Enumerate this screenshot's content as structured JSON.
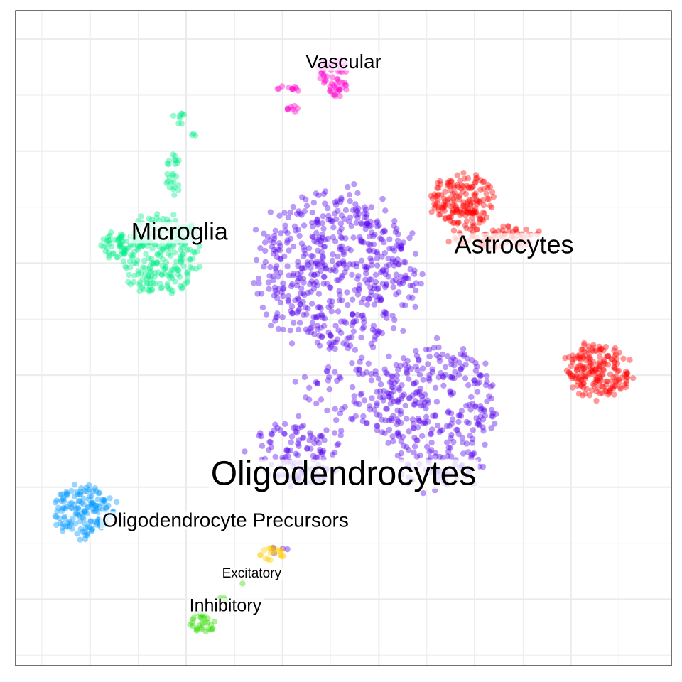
{
  "chart_data": {
    "type": "scatter",
    "title": "",
    "xlabel": "",
    "ylabel": "",
    "grid": true,
    "legend": "none",
    "xlim": [
      0,
      100
    ],
    "ylim": [
      0,
      100
    ],
    "clusters": [
      {
        "name": "Oligodendrocytes",
        "color": "#5500ee",
        "label_at": [
          50,
          29
        ],
        "blobs": [
          {
            "cx": 49,
            "cy": 60,
            "rx": 12,
            "ry": 12,
            "n": 560
          },
          {
            "cx": 64,
            "cy": 38,
            "rx": 9,
            "ry": 11,
            "n": 320
          },
          {
            "cx": 43,
            "cy": 33,
            "rx": 7,
            "ry": 5,
            "n": 120
          },
          {
            "cx": 53,
            "cy": 42,
            "rx": 9,
            "ry": 5,
            "n": 90
          },
          {
            "cx": 40,
            "cy": 18,
            "rx": 1.5,
            "ry": 1,
            "n": 5
          }
        ]
      },
      {
        "name": "Astrocytes",
        "color": "#ff0000",
        "label_at": [
          76,
          64
        ],
        "blobs": [
          {
            "cx": 68,
            "cy": 71,
            "rx": 5,
            "ry": 4,
            "n": 170
          },
          {
            "cx": 73,
            "cy": 65.5,
            "rx": 7,
            "ry": 1.8,
            "n": 80
          },
          {
            "cx": 89,
            "cy": 45,
            "rx": 5,
            "ry": 4,
            "n": 190
          }
        ]
      },
      {
        "name": "Microglia",
        "color": "#00ee88",
        "label_at": [
          25,
          66
        ],
        "blobs": [
          {
            "cx": 22,
            "cy": 63,
            "rx": 6,
            "ry": 6,
            "n": 260
          },
          {
            "cx": 15,
            "cy": 64,
            "rx": 2.2,
            "ry": 2.2,
            "n": 40
          },
          {
            "cx": 24,
            "cy": 75,
            "rx": 1.1,
            "ry": 3.5,
            "n": 25
          },
          {
            "cx": 25,
            "cy": 83.5,
            "rx": 0.9,
            "ry": 1.5,
            "n": 8
          },
          {
            "cx": 27,
            "cy": 81,
            "rx": 0.5,
            "ry": 0.3,
            "n": 3
          }
        ]
      },
      {
        "name": "Vascular",
        "color": "#ff00cc",
        "label_at": [
          50,
          92
        ],
        "blobs": [
          {
            "cx": 48.5,
            "cy": 90,
            "rx": 2.2,
            "ry": 3.2,
            "n": 60
          },
          {
            "cx": 41.5,
            "cy": 88,
            "rx": 1.8,
            "ry": 0.5,
            "n": 10
          },
          {
            "cx": 42.5,
            "cy": 85,
            "rx": 1.4,
            "ry": 0.5,
            "n": 8
          }
        ]
      },
      {
        "name": "Oligodendrocyte Precursors",
        "color": "#0099ff",
        "label_at": [
          32,
          22
        ],
        "blobs": [
          {
            "cx": 10.5,
            "cy": 23.5,
            "rx": 4.5,
            "ry": 4,
            "n": 150
          }
        ]
      },
      {
        "name": "Excitatory",
        "color": "#ffcc00",
        "label_at": [
          36,
          14
        ],
        "blobs": [
          {
            "cx": 39,
            "cy": 17,
            "rx": 2,
            "ry": 1,
            "n": 20
          }
        ]
      },
      {
        "name": "Inhibitory",
        "color": "#33dd00",
        "label_at": [
          32,
          9
        ],
        "blobs": [
          {
            "cx": 28.5,
            "cy": 6.5,
            "rx": 2,
            "ry": 1.6,
            "n": 30
          },
          {
            "cx": 31.5,
            "cy": 10,
            "rx": 0.6,
            "ry": 0.8,
            "n": 4
          },
          {
            "cx": 34.5,
            "cy": 12.5,
            "rx": 0.2,
            "ry": 0.2,
            "n": 1
          }
        ]
      }
    ]
  }
}
